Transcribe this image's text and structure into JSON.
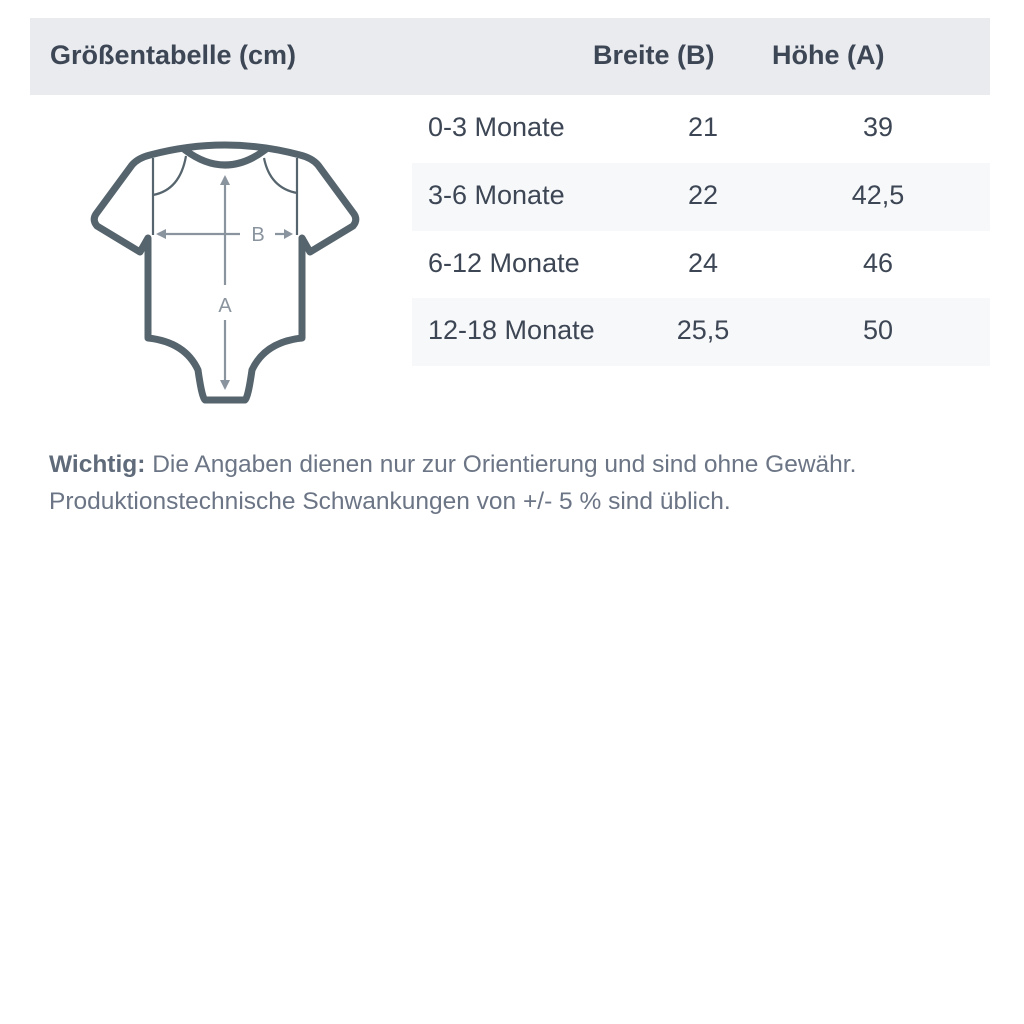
{
  "table": {
    "title": "Größentabelle (cm)",
    "columns": [
      "Breite (B)",
      "Höhe (A)"
    ],
    "rows": [
      {
        "size": "0-3 Monate",
        "breite": "21",
        "hoehe": "39"
      },
      {
        "size": "3-6 Monate",
        "breite": "22",
        "hoehe": "42,5"
      },
      {
        "size": "6-12 Monate",
        "breite": "24",
        "hoehe": "46"
      },
      {
        "size": "12-18 Monate",
        "breite": "25,5",
        "hoehe": "50"
      }
    ]
  },
  "diagram": {
    "icon": "baby-bodysuit-icon",
    "width_label": "B",
    "height_label": "A",
    "outline_color": "#56646d",
    "arrow_color": "#8a949e"
  },
  "note": {
    "label": "Wichtig:",
    "line1": " Die Angaben dienen nur zur Orientierung und sind ohne Gewähr.",
    "line2": "Produktionstechnische Schwankungen von +/- 5 % sind üblich."
  }
}
